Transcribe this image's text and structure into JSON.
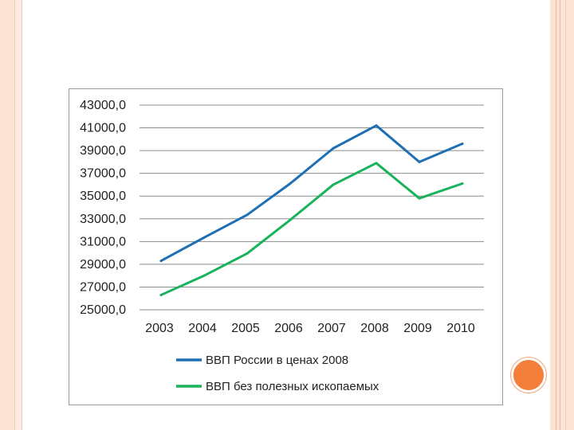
{
  "chart_data": {
    "type": "line",
    "categories": [
      "2003",
      "2004",
      "2005",
      "2006",
      "2007",
      "2008",
      "2009",
      "2010"
    ],
    "series": [
      {
        "name": "ВВП России в ценах 2008",
        "color": "#1f6fb4",
        "values": [
          29300,
          31350,
          33350,
          36100,
          39200,
          41200,
          38000,
          39600
        ]
      },
      {
        "name": "ВВП без полезных ископаемых",
        "color": "#18b35a",
        "values": [
          26300,
          28000,
          29950,
          32900,
          36000,
          37900,
          34800,
          36100
        ]
      }
    ],
    "y_tick_labels": [
      "25000,0",
      "27000,0",
      "29000,0",
      "31000,0",
      "33000,0",
      "35000,0",
      "37000,0",
      "39000,0",
      "41000,0",
      "43000,0"
    ],
    "ylim": [
      25000,
      43000
    ],
    "grid": true,
    "legend_position": "bottom"
  }
}
